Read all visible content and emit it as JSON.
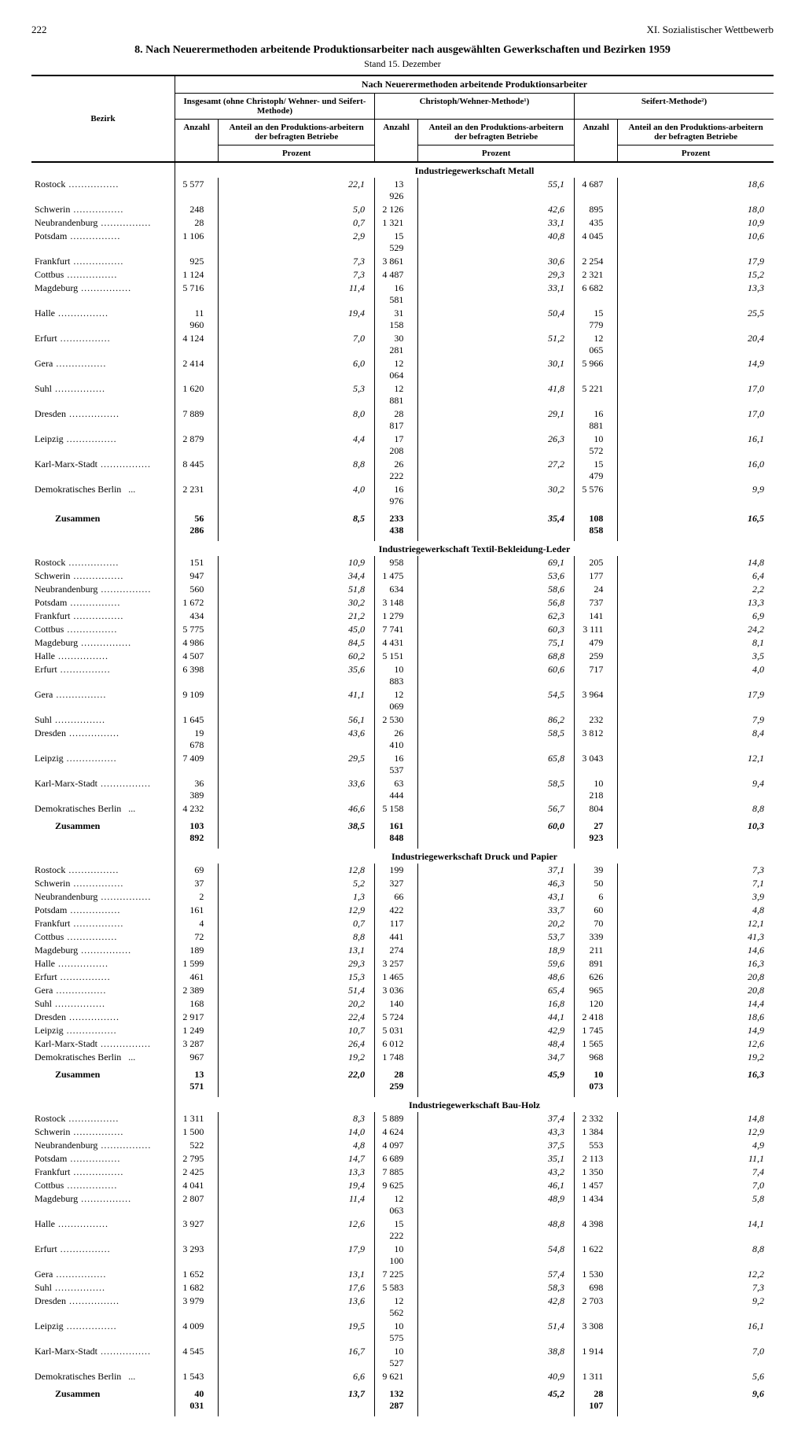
{
  "page_number": "222",
  "chapter": "XI. Sozialistischer Wettbewerb",
  "title": "8. Nach Neuerermethoden arbeitende Produktionsarbeiter nach ausgewählten Gewerkschaften und Bezirken 1959",
  "subtitle": "Stand 15. Dezember",
  "spanner": "Nach Neuerermethoden arbeitende Produktionsarbeiter",
  "group_headers": {
    "g1": "Insgesamt (ohne Christoph/ Wehner- und Seifert-Methode)",
    "g2": "Christoph/Wehner-Methode¹)",
    "g3": "Seifert-Methode²)"
  },
  "col_headers": {
    "bezirk": "Bezirk",
    "anzahl": "Anzahl",
    "anteil": "Anteil an den Produktions-arbeitern der befragten Betriebe",
    "prozent": "Prozent"
  },
  "zusammen_label": "Zusammen",
  "sections": [
    {
      "title": "Industriegewerkschaft Metall",
      "rows": [
        [
          "Rostock",
          "5 577",
          "22,1",
          "13 926",
          "55,1",
          "4 687",
          "18,6"
        ],
        [
          "Schwerin",
          "248",
          "5,0",
          "2 126",
          "42,6",
          "895",
          "18,0"
        ],
        [
          "Neubrandenburg",
          "28",
          "0,7",
          "1 321",
          "33,1",
          "435",
          "10,9"
        ],
        [
          "Potsdam",
          "1 106",
          "2,9",
          "15 529",
          "40,8",
          "4 045",
          "10,6"
        ],
        [
          "Frankfurt",
          "925",
          "7,3",
          "3 861",
          "30,6",
          "2 254",
          "17,9"
        ],
        [
          "Cottbus",
          "1 124",
          "7,3",
          "4 487",
          "29,3",
          "2 321",
          "15,2"
        ],
        [
          "Magdeburg",
          "5 716",
          "11,4",
          "16 581",
          "33,1",
          "6 682",
          "13,3"
        ],
        [
          "Halle",
          "11 960",
          "19,4",
          "31 158",
          "50,4",
          "15 779",
          "25,5"
        ],
        [
          "Erfurt",
          "4 124",
          "7,0",
          "30 281",
          "51,2",
          "12 065",
          "20,4"
        ],
        [
          "Gera",
          "2 414",
          "6,0",
          "12 064",
          "30,1",
          "5 966",
          "14,9"
        ],
        [
          "Suhl",
          "1 620",
          "5,3",
          "12 881",
          "41,8",
          "5 221",
          "17,0"
        ],
        [
          "Dresden",
          "7 889",
          "8,0",
          "28 817",
          "29,1",
          "16 881",
          "17,0"
        ],
        [
          "Leipzig",
          "2 879",
          "4,4",
          "17 208",
          "26,3",
          "10 572",
          "16,1"
        ],
        [
          "Karl-Marx-Stadt",
          "8 445",
          "8,8",
          "26 222",
          "27,2",
          "15 479",
          "16,0"
        ],
        [
          "Demokratisches Berlin",
          "2 231",
          "4,0",
          "16 976",
          "30,2",
          "5 576",
          "9,9"
        ]
      ],
      "total": [
        "56 286",
        "8,5",
        "233 438",
        "35,4",
        "108 858",
        "16,5"
      ]
    },
    {
      "title": "Industriegewerkschaft Textil-Bekleidung-Leder",
      "rows": [
        [
          "Rostock",
          "151",
          "10,9",
          "958",
          "69,1",
          "205",
          "14,8"
        ],
        [
          "Schwerin",
          "947",
          "34,4",
          "1 475",
          "53,6",
          "177",
          "6,4"
        ],
        [
          "Neubrandenburg",
          "560",
          "51,8",
          "634",
          "58,6",
          "24",
          "2,2"
        ],
        [
          "Potsdam",
          "1 672",
          "30,2",
          "3 148",
          "56,8",
          "737",
          "13,3"
        ],
        [
          "Frankfurt",
          "434",
          "21,2",
          "1 279",
          "62,3",
          "141",
          "6,9"
        ],
        [
          "Cottbus",
          "5 775",
          "45,0",
          "7 741",
          "60,3",
          "3 111",
          "24,2"
        ],
        [
          "Magdeburg",
          "4 986",
          "84,5",
          "4 431",
          "75,1",
          "479",
          "8,1"
        ],
        [
          "Halle",
          "4 507",
          "60,2",
          "5 151",
          "68,8",
          "259",
          "3,5"
        ],
        [
          "Erfurt",
          "6 398",
          "35,6",
          "10 883",
          "60,6",
          "717",
          "4,0"
        ],
        [
          "Gera",
          "9 109",
          "41,1",
          "12 069",
          "54,5",
          "3 964",
          "17,9"
        ],
        [
          "Suhl",
          "1 645",
          "56,1",
          "2 530",
          "86,2",
          "232",
          "7,9"
        ],
        [
          "Dresden",
          "19 678",
          "43,6",
          "26 410",
          "58,5",
          "3 812",
          "8,4"
        ],
        [
          "Leipzig",
          "7 409",
          "29,5",
          "16 537",
          "65,8",
          "3 043",
          "12,1"
        ],
        [
          "Karl-Marx-Stadt",
          "36 389",
          "33,6",
          "63 444",
          "58,5",
          "10 218",
          "9,4"
        ],
        [
          "Demokratisches Berlin",
          "4 232",
          "46,6",
          "5 158",
          "56,7",
          "804",
          "8,8"
        ]
      ],
      "total": [
        "103 892",
        "38,5",
        "161 848",
        "60,0",
        "27 923",
        "10,3"
      ]
    },
    {
      "title": "Industriegewerkschaft Druck und Papier",
      "rows": [
        [
          "Rostock",
          "69",
          "12,8",
          "199",
          "37,1",
          "39",
          "7,3"
        ],
        [
          "Schwerin",
          "37",
          "5,2",
          "327",
          "46,3",
          "50",
          "7,1"
        ],
        [
          "Neubrandenburg",
          "2",
          "1,3",
          "66",
          "43,1",
          "6",
          "3,9"
        ],
        [
          "Potsdam",
          "161",
          "12,9",
          "422",
          "33,7",
          "60",
          "4,8"
        ],
        [
          "Frankfurt",
          "4",
          "0,7",
          "117",
          "20,2",
          "70",
          "12,1"
        ],
        [
          "Cottbus",
          "72",
          "8,8",
          "441",
          "53,7",
          "339",
          "41,3"
        ],
        [
          "Magdeburg",
          "189",
          "13,1",
          "274",
          "18,9",
          "211",
          "14,6"
        ],
        [
          "Halle",
          "1 599",
          "29,3",
          "3 257",
          "59,6",
          "891",
          "16,3"
        ],
        [
          "Erfurt",
          "461",
          "15,3",
          "1 465",
          "48,6",
          "626",
          "20,8"
        ],
        [
          "Gera",
          "2 389",
          "51,4",
          "3 036",
          "65,4",
          "965",
          "20,8"
        ],
        [
          "Suhl",
          "168",
          "20,2",
          "140",
          "16,8",
          "120",
          "14,4"
        ],
        [
          "Dresden",
          "2 917",
          "22,4",
          "5 724",
          "44,1",
          "2 418",
          "18,6"
        ],
        [
          "Leipzig",
          "1 249",
          "10,7",
          "5 031",
          "42,9",
          "1 745",
          "14,9"
        ],
        [
          "Karl-Marx-Stadt",
          "3 287",
          "26,4",
          "6 012",
          "48,4",
          "1 565",
          "12,6"
        ],
        [
          "Demokratisches Berlin",
          "967",
          "19,2",
          "1 748",
          "34,7",
          "968",
          "19,2"
        ]
      ],
      "total": [
        "13 571",
        "22,0",
        "28 259",
        "45,9",
        "10 073",
        "16,3"
      ]
    },
    {
      "title": "Industriegewerkschaft Bau-Holz",
      "rows": [
        [
          "Rostock",
          "1 311",
          "8,3",
          "5 889",
          "37,4",
          "2 332",
          "14,8"
        ],
        [
          "Schwerin",
          "1 500",
          "14,0",
          "4 624",
          "43,3",
          "1 384",
          "12,9"
        ],
        [
          "Neubrandenburg",
          "522",
          "4,8",
          "4 097",
          "37,5",
          "553",
          "4,9"
        ],
        [
          "Potsdam",
          "2 795",
          "14,7",
          "6 689",
          "35,1",
          "2 113",
          "11,1"
        ],
        [
          "Frankfurt",
          "2 425",
          "13,3",
          "7 885",
          "43,2",
          "1 350",
          "7,4"
        ],
        [
          "Cottbus",
          "4 041",
          "19,4",
          "9 625",
          "46,1",
          "1 457",
          "7,0"
        ],
        [
          "Magdeburg",
          "2 807",
          "11,4",
          "12 063",
          "48,9",
          "1 434",
          "5,8"
        ],
        [
          "Halle",
          "3 927",
          "12,6",
          "15 222",
          "48,8",
          "4 398",
          "14,1"
        ],
        [
          "Erfurt",
          "3 293",
          "17,9",
          "10 100",
          "54,8",
          "1 622",
          "8,8"
        ],
        [
          "Gera",
          "1 652",
          "13,1",
          "7 225",
          "57,4",
          "1 530",
          "12,2"
        ],
        [
          "Suhl",
          "1 682",
          "17,6",
          "5 583",
          "58,3",
          "698",
          "7,3"
        ],
        [
          "Dresden",
          "3 979",
          "13,6",
          "12 562",
          "42,8",
          "2 703",
          "9,2"
        ],
        [
          "Leipzig",
          "4 009",
          "19,5",
          "10 575",
          "51,4",
          "3 308",
          "16,1"
        ],
        [
          "Karl-Marx-Stadt",
          "4 545",
          "16,7",
          "10 527",
          "38,8",
          "1 914",
          "7,0"
        ],
        [
          "Demokratisches Berlin",
          "1 543",
          "6,6",
          "9 621",
          "40,9",
          "1 311",
          "5,6"
        ]
      ],
      "total": [
        "40 031",
        "13,7",
        "132 287",
        "45,2",
        "28 107",
        "9,6"
      ]
    }
  ]
}
